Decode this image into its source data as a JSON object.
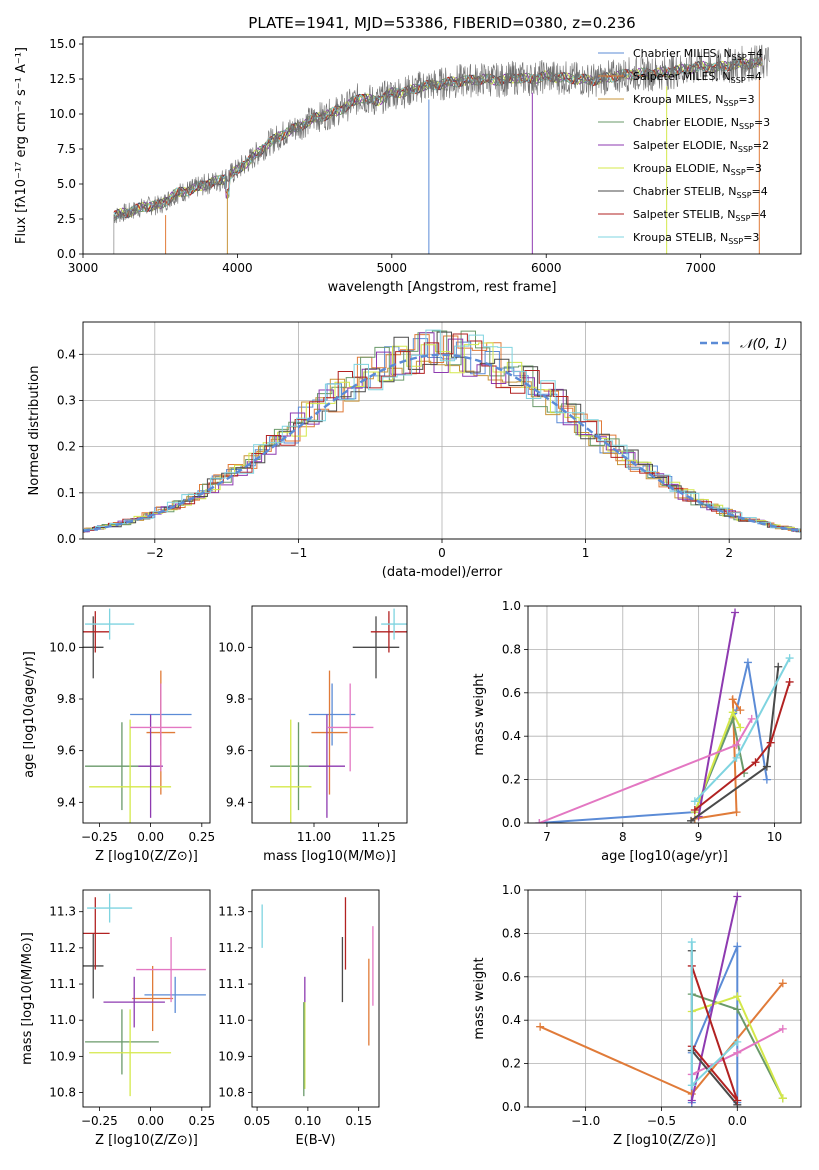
{
  "figure": {
    "title": "PLATE=1941, MJD=53386, FIBERID=0380, z=0.236"
  },
  "chart_data": [
    {
      "type": "line",
      "xlabel": "wavelength [Angstrom, rest frame]",
      "ylabel": "Flux [fλ10⁻¹⁷ erg cm⁻² s⁻¹ A⁻¹]",
      "xlim": [
        3000,
        7650
      ],
      "ylim": [
        0,
        15.5
      ],
      "xticks": [
        "3000",
        "4000",
        "5000",
        "6000",
        "7000"
      ],
      "yticks": [
        "0.0",
        "2.5",
        "5.0",
        "7.5",
        "10.0",
        "12.5",
        "15.0"
      ],
      "legend_position": "top-right",
      "observed_flux": {
        "x": [
          3200,
          3250,
          3300,
          3400,
          3500,
          3600,
          3700,
          3800,
          3900,
          4000,
          4100,
          4200,
          4300,
          4400,
          4500,
          4600,
          4700,
          4800,
          4900,
          5000,
          5100,
          5200,
          5300,
          5400,
          5500,
          5600,
          5700,
          5800,
          5900,
          6000,
          6100,
          6200,
          6300,
          6400,
          6500,
          6600,
          6700,
          6800,
          6900,
          7000,
          7100,
          7200,
          7300,
          7400
        ],
        "y": [
          2.7,
          2.9,
          3.0,
          3.4,
          3.5,
          4.3,
          4.6,
          5.0,
          5.3,
          6.0,
          6.9,
          7.9,
          8.6,
          9.1,
          9.7,
          10.0,
          10.5,
          11.2,
          10.9,
          11.5,
          11.6,
          12.0,
          12.1,
          12.3,
          12.4,
          12.5,
          12.4,
          12.6,
          12.5,
          12.7,
          12.6,
          12.5,
          12.4,
          12.6,
          12.8,
          12.9,
          12.9,
          13.0,
          13.2,
          13.4,
          13.3,
          13.5,
          13.6,
          13.7
        ]
      },
      "legend": [
        {
          "label": "Chabrier MILES, N",
          "sub": "SSP",
          "eq": "=4",
          "color": "#5b8bd6"
        },
        {
          "label": "Salpeter MILES, N",
          "sub": "SSP",
          "eq": "=4",
          "color": "#e07b39"
        },
        {
          "label": "Kroupa MILES, N",
          "sub": "SSP",
          "eq": "=3",
          "color": "#c8953a"
        },
        {
          "label": "Chabrier ELODIE, N",
          "sub": "SSP",
          "eq": "=3",
          "color": "#6a9a6a"
        },
        {
          "label": "Salpeter ELODIE, N",
          "sub": "SSP",
          "eq": "=2",
          "color": "#8e3ab0"
        },
        {
          "label": "Kroupa ELODIE, N",
          "sub": "SSP",
          "eq": "=3",
          "color": "#d4e84a"
        },
        {
          "label": "Chabrier STELIB, N",
          "sub": "SSP",
          "eq": "=4",
          "color": "#4a4a4a"
        },
        {
          "label": "Salpeter STELIB, N",
          "sub": "SSP",
          "eq": "=4",
          "color": "#b22222"
        },
        {
          "label": "Kroupa STELIB, N",
          "sub": "SSP",
          "eq": "=3",
          "color": "#7fd4e0"
        }
      ]
    },
    {
      "type": "histogram",
      "xlabel": "(data-model)/error",
      "ylabel": "Normed distribution",
      "xlim": [
        -2.5,
        2.5
      ],
      "ylim": [
        0,
        0.47
      ],
      "xticks": [
        "−2",
        "−1",
        "0",
        "1",
        "2"
      ],
      "yticks": [
        "0.0",
        "0.1",
        "0.2",
        "0.3",
        "0.4"
      ],
      "grid": true,
      "legend": [
        {
          "label": "𝒩(0, 1)",
          "color": "#5b8bd6"
        }
      ],
      "series_colors": [
        "#5b8bd6",
        "#e07b39",
        "#c8953a",
        "#6a9a6a",
        "#8e3ab0",
        "#d4e84a",
        "#4a4a4a",
        "#b22222",
        "#7fd4e0"
      ]
    },
    {
      "type": "scatter",
      "xlabel": "Z [log10(Z/Z⊙)]",
      "ylabel": "age  [log10(age/yr)]",
      "xlim": [
        -0.33,
        0.29
      ],
      "ylim": [
        9.32,
        10.16
      ],
      "xticks": [
        "−0.25",
        "0.00",
        "0.25"
      ],
      "yticks": [
        "9.4",
        "9.6",
        "9.8",
        "10.0"
      ],
      "points": [
        {
          "x": 0.05,
          "xerr": 0.15,
          "y": 9.74,
          "yerr": 0.12,
          "color": "#5b8bd6"
        },
        {
          "x": 0.05,
          "xerr": 0.07,
          "y": 9.67,
          "yerr": 0.24,
          "color": "#e07b39"
        },
        {
          "x": -0.14,
          "xerr": 0.18,
          "y": 9.54,
          "yerr": 0.17,
          "color": "#6a9a6a"
        },
        {
          "x": -0.1,
          "xerr": 0.2,
          "y": 9.46,
          "yerr": 0.26,
          "color": "#d4e84a"
        },
        {
          "x": 0.0,
          "xerr": 0.06,
          "y": 9.54,
          "yerr": 0.2,
          "color": "#8e3ab0"
        },
        {
          "x": 0.05,
          "xerr": 0.15,
          "y": 9.69,
          "yerr": 0.17,
          "color": "#e377c2"
        },
        {
          "x": -0.28,
          "xerr": 0.05,
          "y": 10.0,
          "yerr": 0.12,
          "color": "#4a4a4a"
        },
        {
          "x": -0.27,
          "xerr": 0.07,
          "y": 10.06,
          "yerr": 0.08,
          "color": "#b22222"
        },
        {
          "x": -0.2,
          "xerr": 0.12,
          "y": 10.09,
          "yerr": 0.06,
          "color": "#7fd4e0"
        }
      ]
    },
    {
      "type": "scatter",
      "xlabel": "mass [log10(M/M⊙)]",
      "ylabel": "",
      "xlim": [
        10.76,
        11.36
      ],
      "ylim": [
        9.32,
        10.16
      ],
      "xticks": [
        "11.00",
        "11.25"
      ],
      "yticks": [
        "9.4",
        "9.6",
        "9.8",
        "10.0"
      ],
      "points": [
        {
          "x": 11.07,
          "xerr": 0.09,
          "y": 9.74,
          "yerr": 0.12,
          "color": "#5b8bd6"
        },
        {
          "x": 11.06,
          "xerr": 0.07,
          "y": 9.67,
          "yerr": 0.24,
          "color": "#e07b39"
        },
        {
          "x": 10.94,
          "xerr": 0.11,
          "y": 9.54,
          "yerr": 0.17,
          "color": "#6a9a6a"
        },
        {
          "x": 10.91,
          "xerr": 0.08,
          "y": 9.46,
          "yerr": 0.26,
          "color": "#d4e84a"
        },
        {
          "x": 11.05,
          "xerr": 0.07,
          "y": 9.54,
          "yerr": 0.2,
          "color": "#8e3ab0"
        },
        {
          "x": 11.14,
          "xerr": 0.09,
          "y": 9.69,
          "yerr": 0.17,
          "color": "#e377c2"
        },
        {
          "x": 11.24,
          "xerr": 0.09,
          "y": 10.0,
          "yerr": 0.12,
          "color": "#4a4a4a"
        },
        {
          "x": 11.29,
          "xerr": 0.07,
          "y": 10.06,
          "yerr": 0.08,
          "color": "#b22222"
        },
        {
          "x": 11.31,
          "xerr": 0.05,
          "y": 10.09,
          "yerr": 0.06,
          "color": "#7fd4e0"
        }
      ]
    },
    {
      "type": "line",
      "xlabel": "age  [log10(age/yr)]",
      "ylabel": "mass weight",
      "xlim": [
        6.75,
        10.35
      ],
      "ylim": [
        0,
        1.0
      ],
      "xticks": [
        "7",
        "8",
        "9",
        "10"
      ],
      "yticks": [
        "0.0",
        "0.2",
        "0.4",
        "0.6",
        "0.8",
        "1.0"
      ],
      "grid": true,
      "series": [
        {
          "color": "#5b8bd6",
          "x": [
            6.9,
            8.95,
            9.5,
            9.65,
            9.9
          ],
          "y": [
            0.0,
            0.05,
            0.52,
            0.74,
            0.2
          ]
        },
        {
          "color": "#e07b39",
          "x": [
            8.95,
            9.5,
            9.45,
            9.55
          ],
          "y": [
            0.02,
            0.05,
            0.57,
            0.52
          ]
        },
        {
          "color": "#6a9a6a",
          "x": [
            8.95,
            9.45,
            9.6
          ],
          "y": [
            0.05,
            0.48,
            0.23
          ]
        },
        {
          "color": "#d4e84a",
          "x": [
            8.95,
            9.45,
            9.55
          ],
          "y": [
            0.05,
            0.51,
            0.44
          ]
        },
        {
          "color": "#8e3ab0",
          "x": [
            9.0,
            9.48
          ],
          "y": [
            0.03,
            0.97
          ]
        },
        {
          "color": "#e377c2",
          "x": [
            6.9,
            9.5,
            9.7
          ],
          "y": [
            0.0,
            0.36,
            0.48
          ]
        },
        {
          "color": "#4a4a4a",
          "x": [
            8.9,
            9.9,
            10.05
          ],
          "y": [
            0.01,
            0.26,
            0.72
          ]
        },
        {
          "color": "#b22222",
          "x": [
            8.95,
            9.75,
            9.95,
            10.2
          ],
          "y": [
            0.06,
            0.28,
            0.37,
            0.65
          ]
        },
        {
          "color": "#7fd4e0",
          "x": [
            8.95,
            9.5,
            10.2
          ],
          "y": [
            0.1,
            0.3,
            0.76
          ]
        }
      ]
    },
    {
      "type": "scatter",
      "xlabel": "Z [log10(Z/Z⊙)]",
      "ylabel": "mass [log10(M/M⊙)]",
      "xlim": [
        -0.33,
        0.29
      ],
      "ylim": [
        10.76,
        11.36
      ],
      "xticks": [
        "−0.25",
        "0.00",
        "0.25"
      ],
      "yticks": [
        "10.8",
        "10.9",
        "11.0",
        "11.1",
        "11.2",
        "11.3"
      ],
      "points": [
        {
          "x": 0.12,
          "xerr": 0.15,
          "y": 11.07,
          "yerr": 0.05,
          "color": "#5b8bd6"
        },
        {
          "x": 0.01,
          "xerr": 0.1,
          "y": 11.06,
          "yerr": 0.09,
          "color": "#e07b39"
        },
        {
          "x": -0.14,
          "xerr": 0.18,
          "y": 10.94,
          "yerr": 0.09,
          "color": "#6a9a6a"
        },
        {
          "x": -0.1,
          "xerr": 0.2,
          "y": 10.91,
          "yerr": 0.12,
          "color": "#d4e84a"
        },
        {
          "x": -0.08,
          "xerr": 0.15,
          "y": 11.05,
          "yerr": 0.07,
          "color": "#8e3ab0"
        },
        {
          "x": 0.1,
          "xerr": 0.17,
          "y": 11.14,
          "yerr": 0.09,
          "color": "#e377c2"
        },
        {
          "x": -0.28,
          "xerr": 0.05,
          "y": 11.15,
          "yerr": 0.09,
          "color": "#4a4a4a"
        },
        {
          "x": -0.27,
          "xerr": 0.07,
          "y": 11.24,
          "yerr": 0.1,
          "color": "#b22222"
        },
        {
          "x": -0.2,
          "xerr": 0.11,
          "y": 11.31,
          "yerr": 0.04,
          "color": "#7fd4e0"
        }
      ]
    },
    {
      "type": "scatter",
      "xlabel": "E(B-V)",
      "ylabel": "",
      "xlim": [
        0.045,
        0.17
      ],
      "ylim": [
        10.76,
        11.36
      ],
      "xticks": [
        "0.05",
        "0.10",
        "0.15"
      ],
      "yticks": [
        "10.8",
        "10.9",
        "11.0",
        "11.1",
        "11.2",
        "11.3"
      ],
      "points": [
        {
          "x": 0.097,
          "y": 11.06,
          "yerr": 0.06,
          "color": "#8e3ab0"
        },
        {
          "x": 0.097,
          "y": 10.93,
          "yerr": 0.12,
          "color": "#d4e84a"
        },
        {
          "x": 0.096,
          "y": 10.92,
          "yerr": 0.13,
          "color": "#6a9a6a"
        },
        {
          "x": 0.134,
          "y": 11.14,
          "yerr": 0.09,
          "color": "#4a4a4a"
        },
        {
          "x": 0.137,
          "y": 11.24,
          "yerr": 0.1,
          "color": "#b22222"
        },
        {
          "x": 0.16,
          "y": 11.05,
          "yerr": 0.12,
          "color": "#e07b39"
        },
        {
          "x": 0.164,
          "y": 11.15,
          "yerr": 0.11,
          "color": "#e377c2"
        },
        {
          "x": 0.055,
          "y": 11.26,
          "yerr": 0.06,
          "color": "#7fd4e0"
        }
      ]
    },
    {
      "type": "line",
      "xlabel": "Z [log10(Z/Z⊙)]",
      "ylabel": "mass weight",
      "xlim": [
        -1.38,
        0.42
      ],
      "ylim": [
        0,
        1.0
      ],
      "xticks": [
        "−1.0",
        "−0.5",
        "0.0"
      ],
      "yticks": [
        "0.0",
        "0.2",
        "0.4",
        "0.6",
        "0.8",
        "1.0"
      ],
      "grid": true,
      "series": [
        {
          "color": "#5b8bd6",
          "x": [
            -0.3,
            -0.3,
            0.0,
            0.0
          ],
          "y": [
            0.02,
            0.25,
            0.74,
            0.02
          ]
        },
        {
          "color": "#e07b39",
          "x": [
            -1.3,
            -0.3,
            0.3
          ],
          "y": [
            0.37,
            0.06,
            0.57
          ]
        },
        {
          "color": "#6a9a6a",
          "x": [
            -0.3,
            0.0,
            0.3
          ],
          "y": [
            0.52,
            0.45,
            0.04
          ]
        },
        {
          "color": "#d4e84a",
          "x": [
            -0.3,
            0.0,
            0.3
          ],
          "y": [
            0.44,
            0.51,
            0.04
          ]
        },
        {
          "color": "#8e3ab0",
          "x": [
            -0.3,
            0.0
          ],
          "y": [
            0.03,
            0.97
          ]
        },
        {
          "color": "#e377c2",
          "x": [
            -0.3,
            0.0,
            0.3
          ],
          "y": [
            0.15,
            0.25,
            0.36
          ]
        },
        {
          "color": "#4a4a4a",
          "x": [
            -0.3,
            -0.3,
            0.0
          ],
          "y": [
            0.72,
            0.26,
            0.01
          ]
        },
        {
          "color": "#b22222",
          "x": [
            -0.3,
            0.0,
            -0.3
          ],
          "y": [
            0.65,
            0.03,
            0.28
          ]
        },
        {
          "color": "#7fd4e0",
          "x": [
            -0.3,
            -0.3,
            0.0
          ],
          "y": [
            0.76,
            0.1,
            0.3
          ]
        }
      ]
    }
  ]
}
